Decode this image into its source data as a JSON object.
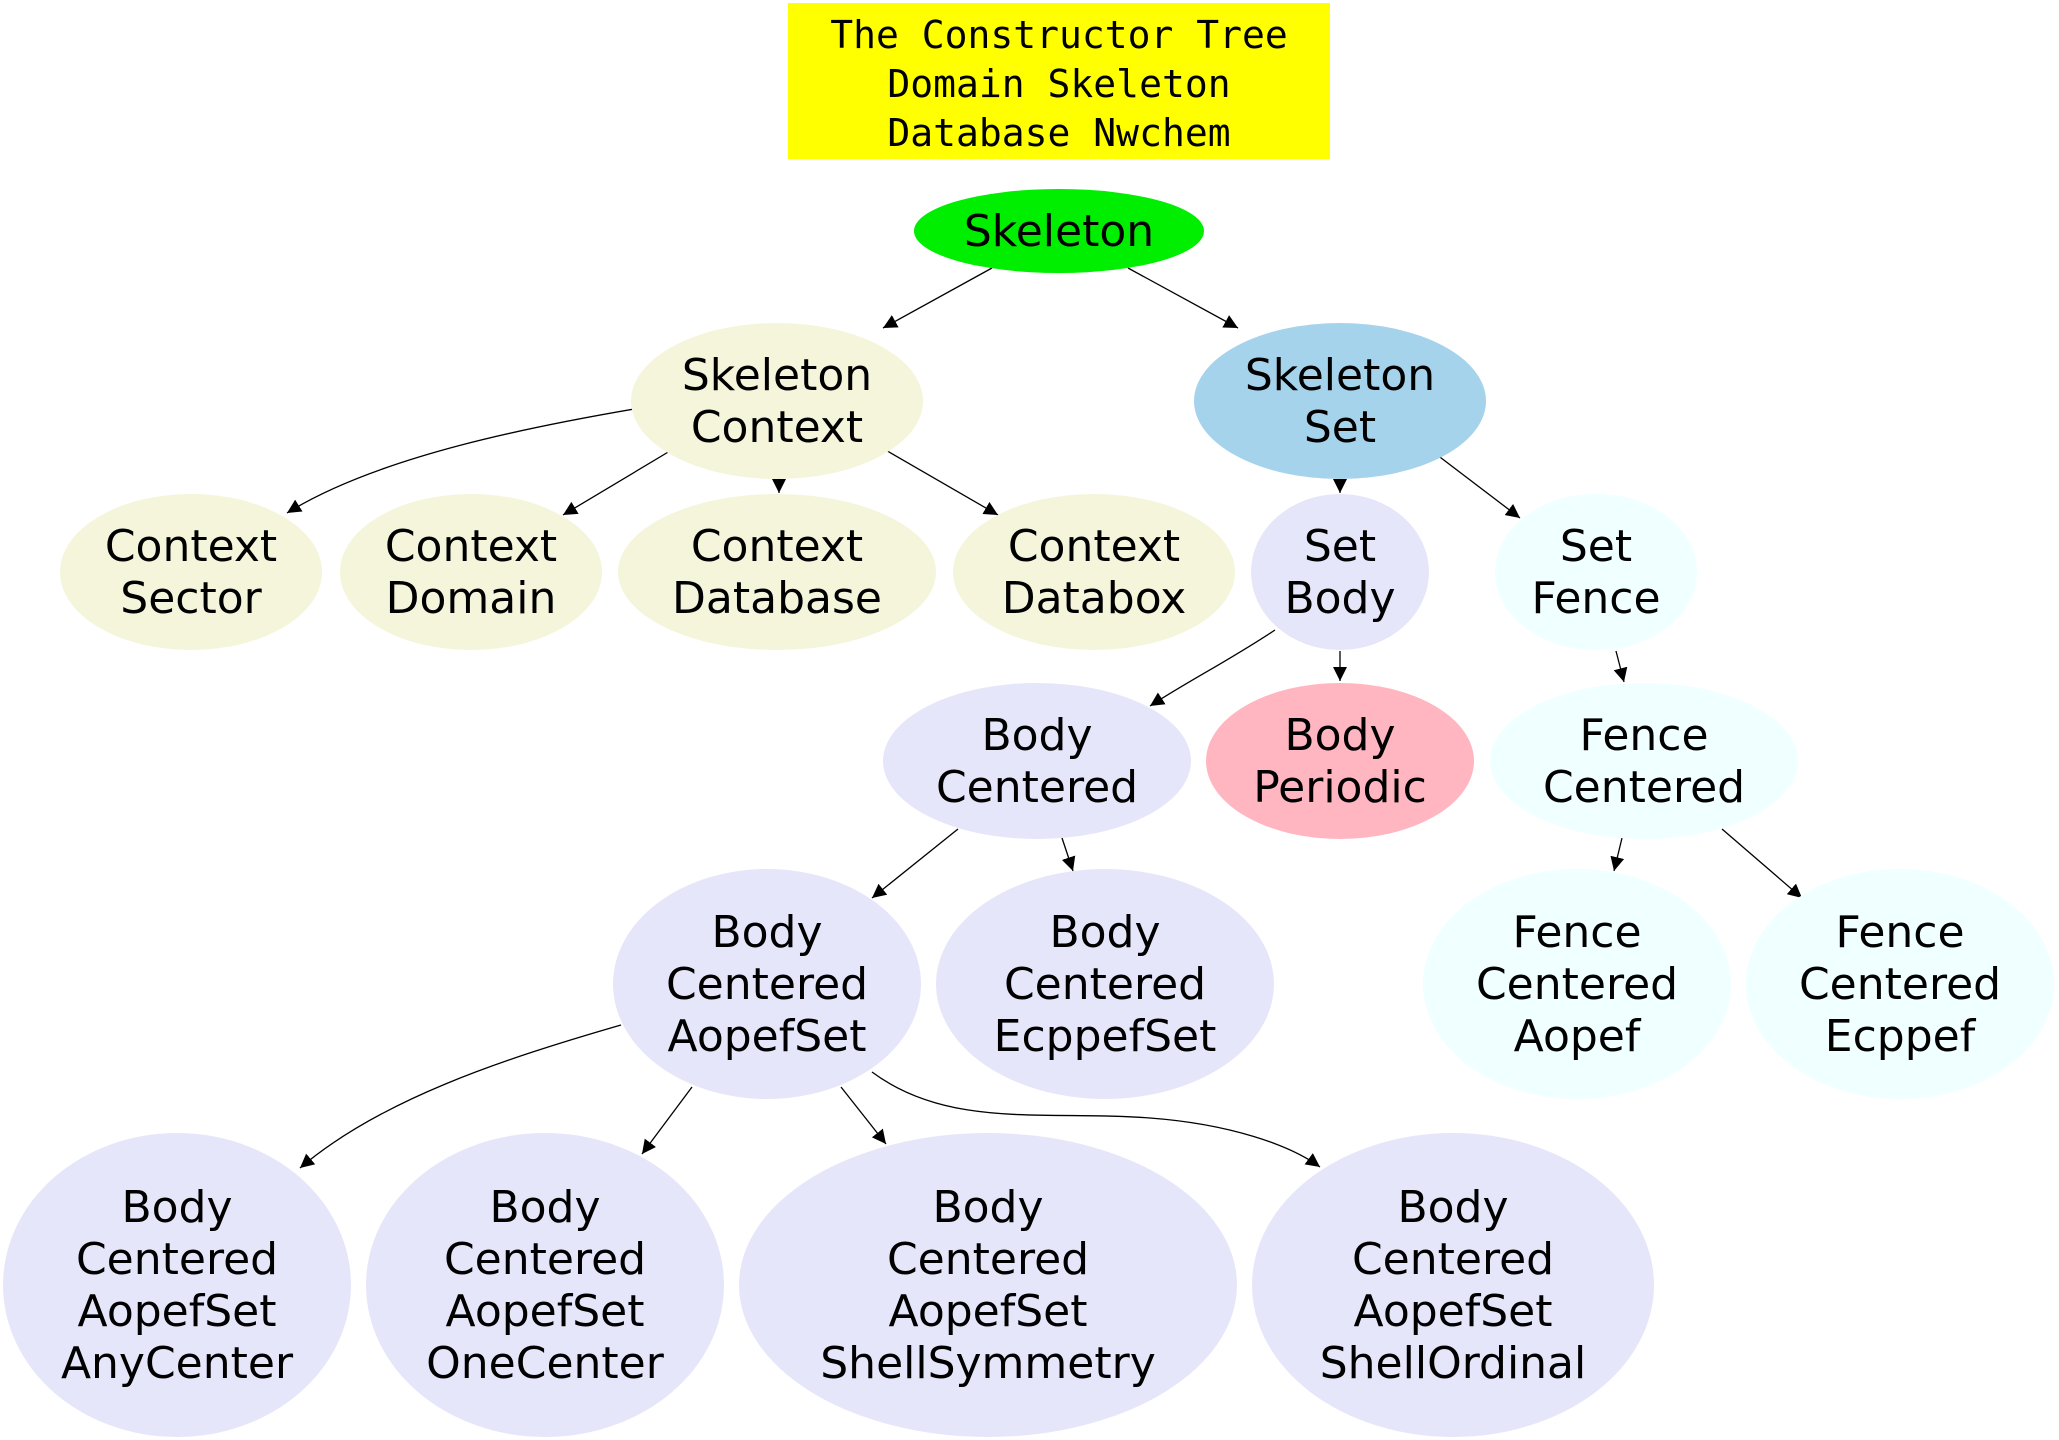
{
  "title": {
    "lines": [
      "The Constructor Tree",
      "Domain Skeleton",
      "Database Nwchem"
    ],
    "color": "#ffff00"
  },
  "nodes": [
    {
      "id": "skeleton",
      "lines": [
        "Skeleton"
      ],
      "color": "#00ee00"
    },
    {
      "id": "skeleton-context",
      "lines": [
        "Skeleton",
        "Context"
      ],
      "color": "#f5f5dc"
    },
    {
      "id": "skeleton-set",
      "lines": [
        "Skeleton",
        "Set"
      ],
      "color": "#a6d3ec"
    },
    {
      "id": "context-sector",
      "lines": [
        "Context",
        "Sector"
      ],
      "color": "#f5f5dc"
    },
    {
      "id": "context-domain",
      "lines": [
        "Context",
        "Domain"
      ],
      "color": "#f5f5dc"
    },
    {
      "id": "context-database",
      "lines": [
        "Context",
        "Database"
      ],
      "color": "#f5f5dc"
    },
    {
      "id": "context-databox",
      "lines": [
        "Context",
        "Databox"
      ],
      "color": "#f5f5dc"
    },
    {
      "id": "set-body",
      "lines": [
        "Set",
        "Body"
      ],
      "color": "#e6e6fa"
    },
    {
      "id": "set-fence",
      "lines": [
        "Set",
        "Fence"
      ],
      "color": "#f0ffff"
    },
    {
      "id": "body-centered",
      "lines": [
        "Body",
        "Centered"
      ],
      "color": "#e6e6fa"
    },
    {
      "id": "body-periodic",
      "lines": [
        "Body",
        "Periodic"
      ],
      "color": "#ffb6c1"
    },
    {
      "id": "fence-centered",
      "lines": [
        "Fence",
        "Centered"
      ],
      "color": "#f0ffff"
    },
    {
      "id": "body-centered-aopefset",
      "lines": [
        "Body",
        "Centered",
        "AopefSet"
      ],
      "color": "#e6e6fa"
    },
    {
      "id": "body-centered-ecppefset",
      "lines": [
        "Body",
        "Centered",
        "EcppefSet"
      ],
      "color": "#e6e6fa"
    },
    {
      "id": "fence-centered-aopef",
      "lines": [
        "Fence",
        "Centered",
        "Aopef"
      ],
      "color": "#f0ffff"
    },
    {
      "id": "fence-centered-ecppef",
      "lines": [
        "Fence",
        "Centered",
        "Ecppef"
      ],
      "color": "#f0ffff"
    },
    {
      "id": "body-centered-aopefset-anycenter",
      "lines": [
        "Body",
        "Centered",
        "AopefSet",
        "AnyCenter"
      ],
      "color": "#e6e6fa"
    },
    {
      "id": "body-centered-aopefset-onecenter",
      "lines": [
        "Body",
        "Centered",
        "AopefSet",
        "OneCenter"
      ],
      "color": "#e6e6fa"
    },
    {
      "id": "body-centered-aopefset-shellsymmetry",
      "lines": [
        "Body",
        "Centered",
        "AopefSet",
        "ShellSymmetry"
      ],
      "color": "#e6e6fa"
    },
    {
      "id": "body-centered-aopefset-shellordinal",
      "lines": [
        "Body",
        "Centered",
        "AopefSet",
        "ShellOrdinal"
      ],
      "color": "#e6e6fa"
    }
  ],
  "edges": [
    {
      "from": "skeleton",
      "to": "skeleton-context"
    },
    {
      "from": "skeleton",
      "to": "skeleton-set"
    },
    {
      "from": "skeleton-context",
      "to": "context-sector"
    },
    {
      "from": "skeleton-context",
      "to": "context-domain"
    },
    {
      "from": "skeleton-context",
      "to": "context-database"
    },
    {
      "from": "skeleton-context",
      "to": "context-databox"
    },
    {
      "from": "skeleton-set",
      "to": "set-body"
    },
    {
      "from": "skeleton-set",
      "to": "set-fence"
    },
    {
      "from": "set-body",
      "to": "body-centered"
    },
    {
      "from": "set-body",
      "to": "body-periodic"
    },
    {
      "from": "set-fence",
      "to": "fence-centered"
    },
    {
      "from": "body-centered",
      "to": "body-centered-aopefset"
    },
    {
      "from": "body-centered",
      "to": "body-centered-ecppefset"
    },
    {
      "from": "fence-centered",
      "to": "fence-centered-aopef"
    },
    {
      "from": "fence-centered",
      "to": "fence-centered-ecppef"
    },
    {
      "from": "body-centered-aopefset",
      "to": "body-centered-aopefset-anycenter"
    },
    {
      "from": "body-centered-aopefset",
      "to": "body-centered-aopefset-onecenter"
    },
    {
      "from": "body-centered-aopefset",
      "to": "body-centered-aopefset-shellsymmetry"
    },
    {
      "from": "body-centered-aopefset",
      "to": "body-centered-aopefset-shellordinal"
    }
  ]
}
